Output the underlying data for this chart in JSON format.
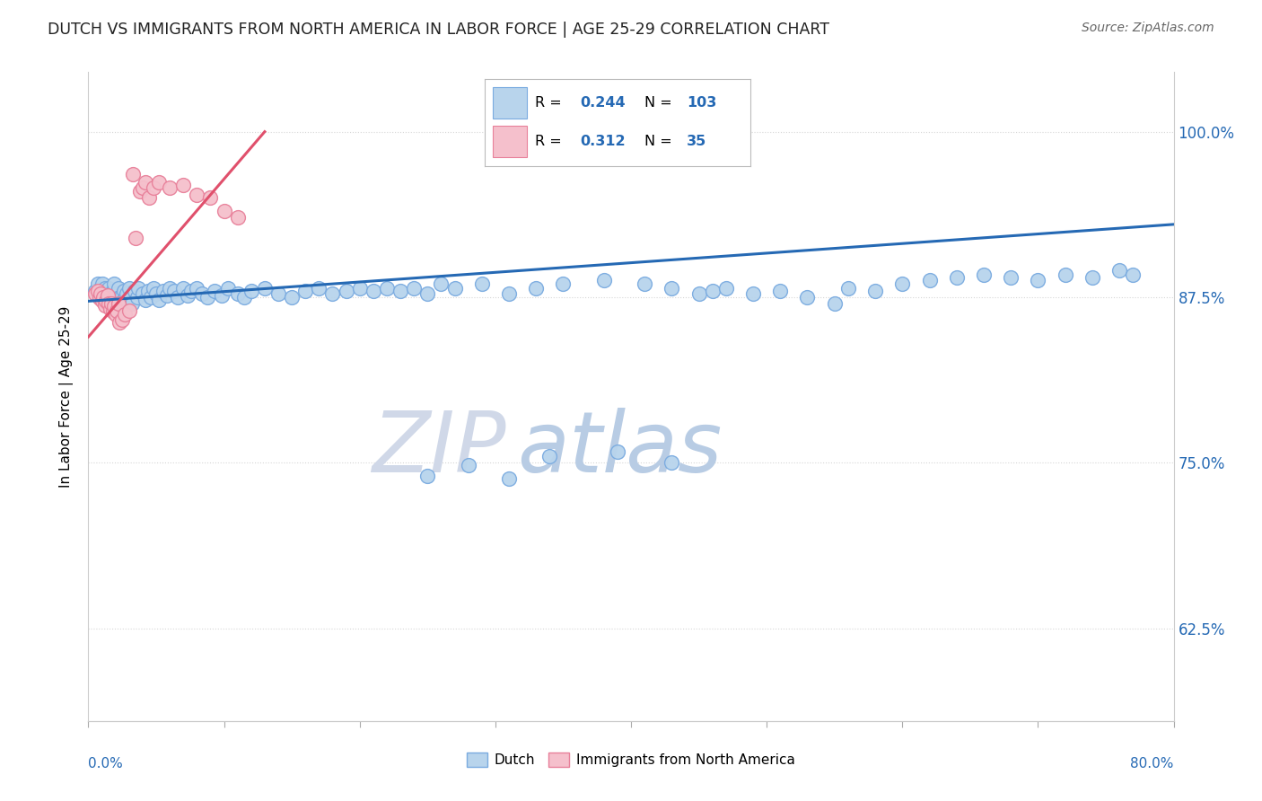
{
  "title": "DUTCH VS IMMIGRANTS FROM NORTH AMERICA IN LABOR FORCE | AGE 25-29 CORRELATION CHART",
  "source": "Source: ZipAtlas.com",
  "ylabel": "In Labor Force | Age 25-29",
  "y_tick_labels": [
    "62.5%",
    "75.0%",
    "87.5%",
    "100.0%"
  ],
  "y_tick_values": [
    0.625,
    0.75,
    0.875,
    1.0
  ],
  "x_range": [
    0.0,
    0.8
  ],
  "y_range": [
    0.555,
    1.045
  ],
  "legend_blue_R": "0.244",
  "legend_blue_N": "103",
  "legend_pink_R": "0.312",
  "legend_pink_N": "35",
  "blue_color": "#b8d4ec",
  "blue_edge_color": "#7aabe0",
  "pink_color": "#f5c0cc",
  "pink_edge_color": "#e8809a",
  "blue_line_color": "#2569b4",
  "pink_line_color": "#e0506c",
  "title_color": "#222222",
  "source_color": "#666666",
  "label_color": "#2569b4",
  "grid_color": "#cccccc",
  "blue_x": [
    0.005,
    0.007,
    0.008,
    0.009,
    0.01,
    0.01,
    0.011,
    0.012,
    0.012,
    0.013,
    0.015,
    0.015,
    0.016,
    0.017,
    0.018,
    0.019,
    0.019,
    0.02,
    0.021,
    0.022,
    0.023,
    0.024,
    0.025,
    0.026,
    0.027,
    0.028,
    0.03,
    0.031,
    0.032,
    0.034,
    0.036,
    0.037,
    0.04,
    0.042,
    0.044,
    0.046,
    0.048,
    0.05,
    0.052,
    0.055,
    0.058,
    0.06,
    0.063,
    0.066,
    0.07,
    0.073,
    0.076,
    0.08,
    0.084,
    0.088,
    0.093,
    0.098,
    0.103,
    0.11,
    0.115,
    0.12,
    0.13,
    0.14,
    0.15,
    0.16,
    0.17,
    0.18,
    0.19,
    0.2,
    0.21,
    0.22,
    0.23,
    0.24,
    0.25,
    0.26,
    0.27,
    0.29,
    0.31,
    0.33,
    0.35,
    0.38,
    0.41,
    0.43,
    0.45,
    0.46,
    0.47,
    0.49,
    0.51,
    0.53,
    0.55,
    0.56,
    0.58,
    0.6,
    0.62,
    0.64,
    0.66,
    0.68,
    0.7,
    0.72,
    0.74,
    0.76,
    0.77,
    0.43,
    0.34,
    0.39,
    0.25,
    0.28,
    0.31
  ],
  "blue_y": [
    0.88,
    0.885,
    0.878,
    0.882,
    0.876,
    0.885,
    0.88,
    0.874,
    0.882,
    0.878,
    0.875,
    0.882,
    0.878,
    0.872,
    0.88,
    0.876,
    0.885,
    0.873,
    0.878,
    0.882,
    0.875,
    0.868,
    0.876,
    0.88,
    0.874,
    0.878,
    0.882,
    0.875,
    0.87,
    0.88,
    0.875,
    0.882,
    0.878,
    0.873,
    0.88,
    0.875,
    0.882,
    0.878,
    0.873,
    0.88,
    0.876,
    0.882,
    0.88,
    0.875,
    0.882,
    0.876,
    0.88,
    0.882,
    0.878,
    0.875,
    0.88,
    0.876,
    0.882,
    0.878,
    0.875,
    0.88,
    0.882,
    0.878,
    0.875,
    0.88,
    0.882,
    0.878,
    0.88,
    0.882,
    0.88,
    0.882,
    0.88,
    0.882,
    0.878,
    0.885,
    0.882,
    0.885,
    0.878,
    0.882,
    0.885,
    0.888,
    0.885,
    0.882,
    0.878,
    0.88,
    0.882,
    0.878,
    0.88,
    0.875,
    0.87,
    0.882,
    0.88,
    0.885,
    0.888,
    0.89,
    0.892,
    0.89,
    0.888,
    0.892,
    0.89,
    0.895,
    0.892,
    0.75,
    0.755,
    0.758,
    0.74,
    0.748,
    0.738
  ],
  "pink_x": [
    0.005,
    0.007,
    0.008,
    0.009,
    0.01,
    0.011,
    0.012,
    0.013,
    0.014,
    0.015,
    0.016,
    0.017,
    0.018,
    0.019,
    0.02,
    0.021,
    0.022,
    0.023,
    0.025,
    0.027,
    0.03,
    0.033,
    0.035,
    0.038,
    0.04,
    0.042,
    0.045,
    0.048,
    0.052,
    0.06,
    0.07,
    0.08,
    0.09,
    0.1,
    0.11
  ],
  "pink_y": [
    0.878,
    0.88,
    0.874,
    0.878,
    0.872,
    0.875,
    0.869,
    0.872,
    0.876,
    0.87,
    0.866,
    0.87,
    0.864,
    0.868,
    0.862,
    0.865,
    0.87,
    0.856,
    0.858,
    0.862,
    0.865,
    0.968,
    0.92,
    0.955,
    0.958,
    0.962,
    0.95,
    0.958,
    0.962,
    0.958,
    0.96,
    0.952,
    0.95,
    0.94,
    0.935
  ],
  "blue_line_x": [
    0.0,
    0.8
  ],
  "blue_line_y": [
    0.872,
    0.93
  ],
  "pink_line_x": [
    0.0,
    0.13
  ],
  "pink_line_y": [
    0.845,
    1.0
  ],
  "watermark_zip_color": "#d0d8e8",
  "watermark_atlas_color": "#b8cce4",
  "marker_size": 130
}
